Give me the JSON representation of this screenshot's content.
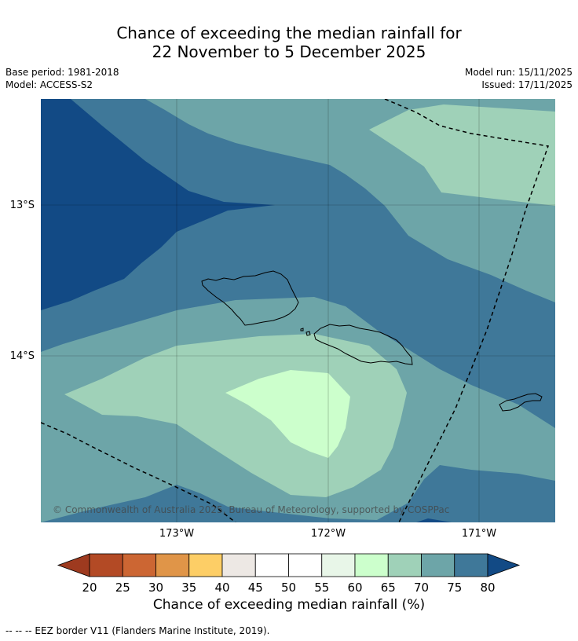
{
  "title_line1": "Chance of exceeding the median rainfall for",
  "title_line2": "22 November to 5 December 2025",
  "meta": {
    "base_period": "Base period: 1981-2018",
    "model": "Model: ACCESS-S2",
    "model_run": "Model run: 15/11/2025",
    "issued": "Issued: 17/11/2025"
  },
  "map": {
    "lat_labels": [
      "13°S",
      "14°S"
    ],
    "lon_labels": [
      "173°W",
      "172°W",
      "171°W"
    ],
    "copyright": "© Commonwealth of Australia 2025, Bureau of Meteorology, supported by COSPPac"
  },
  "colorbar": {
    "ticks": [
      "20",
      "25",
      "30",
      "35",
      "40",
      "45",
      "50",
      "55",
      "60",
      "65",
      "70",
      "75",
      "80"
    ],
    "colors": [
      "#9e3a1f",
      "#b34a25",
      "#cc6633",
      "#e09548",
      "#fdce66",
      "#ede8e4",
      "#ffffff",
      "#ffffff",
      "#e8f6e8",
      "#ccffcc",
      "#9fd1b8",
      "#6da5a8",
      "#3f7899",
      "#124a85"
    ],
    "title": "Chance of exceeding median rainfall (%)"
  },
  "colors": {
    "c80": "#124a85",
    "c75": "#3f7899",
    "c70": "#6da5a8",
    "c65": "#9fd1b8",
    "c60": "#ccffcc"
  },
  "footer": "--  --  -- EEZ border V11 (Flanders Marine Institute, 2019)."
}
